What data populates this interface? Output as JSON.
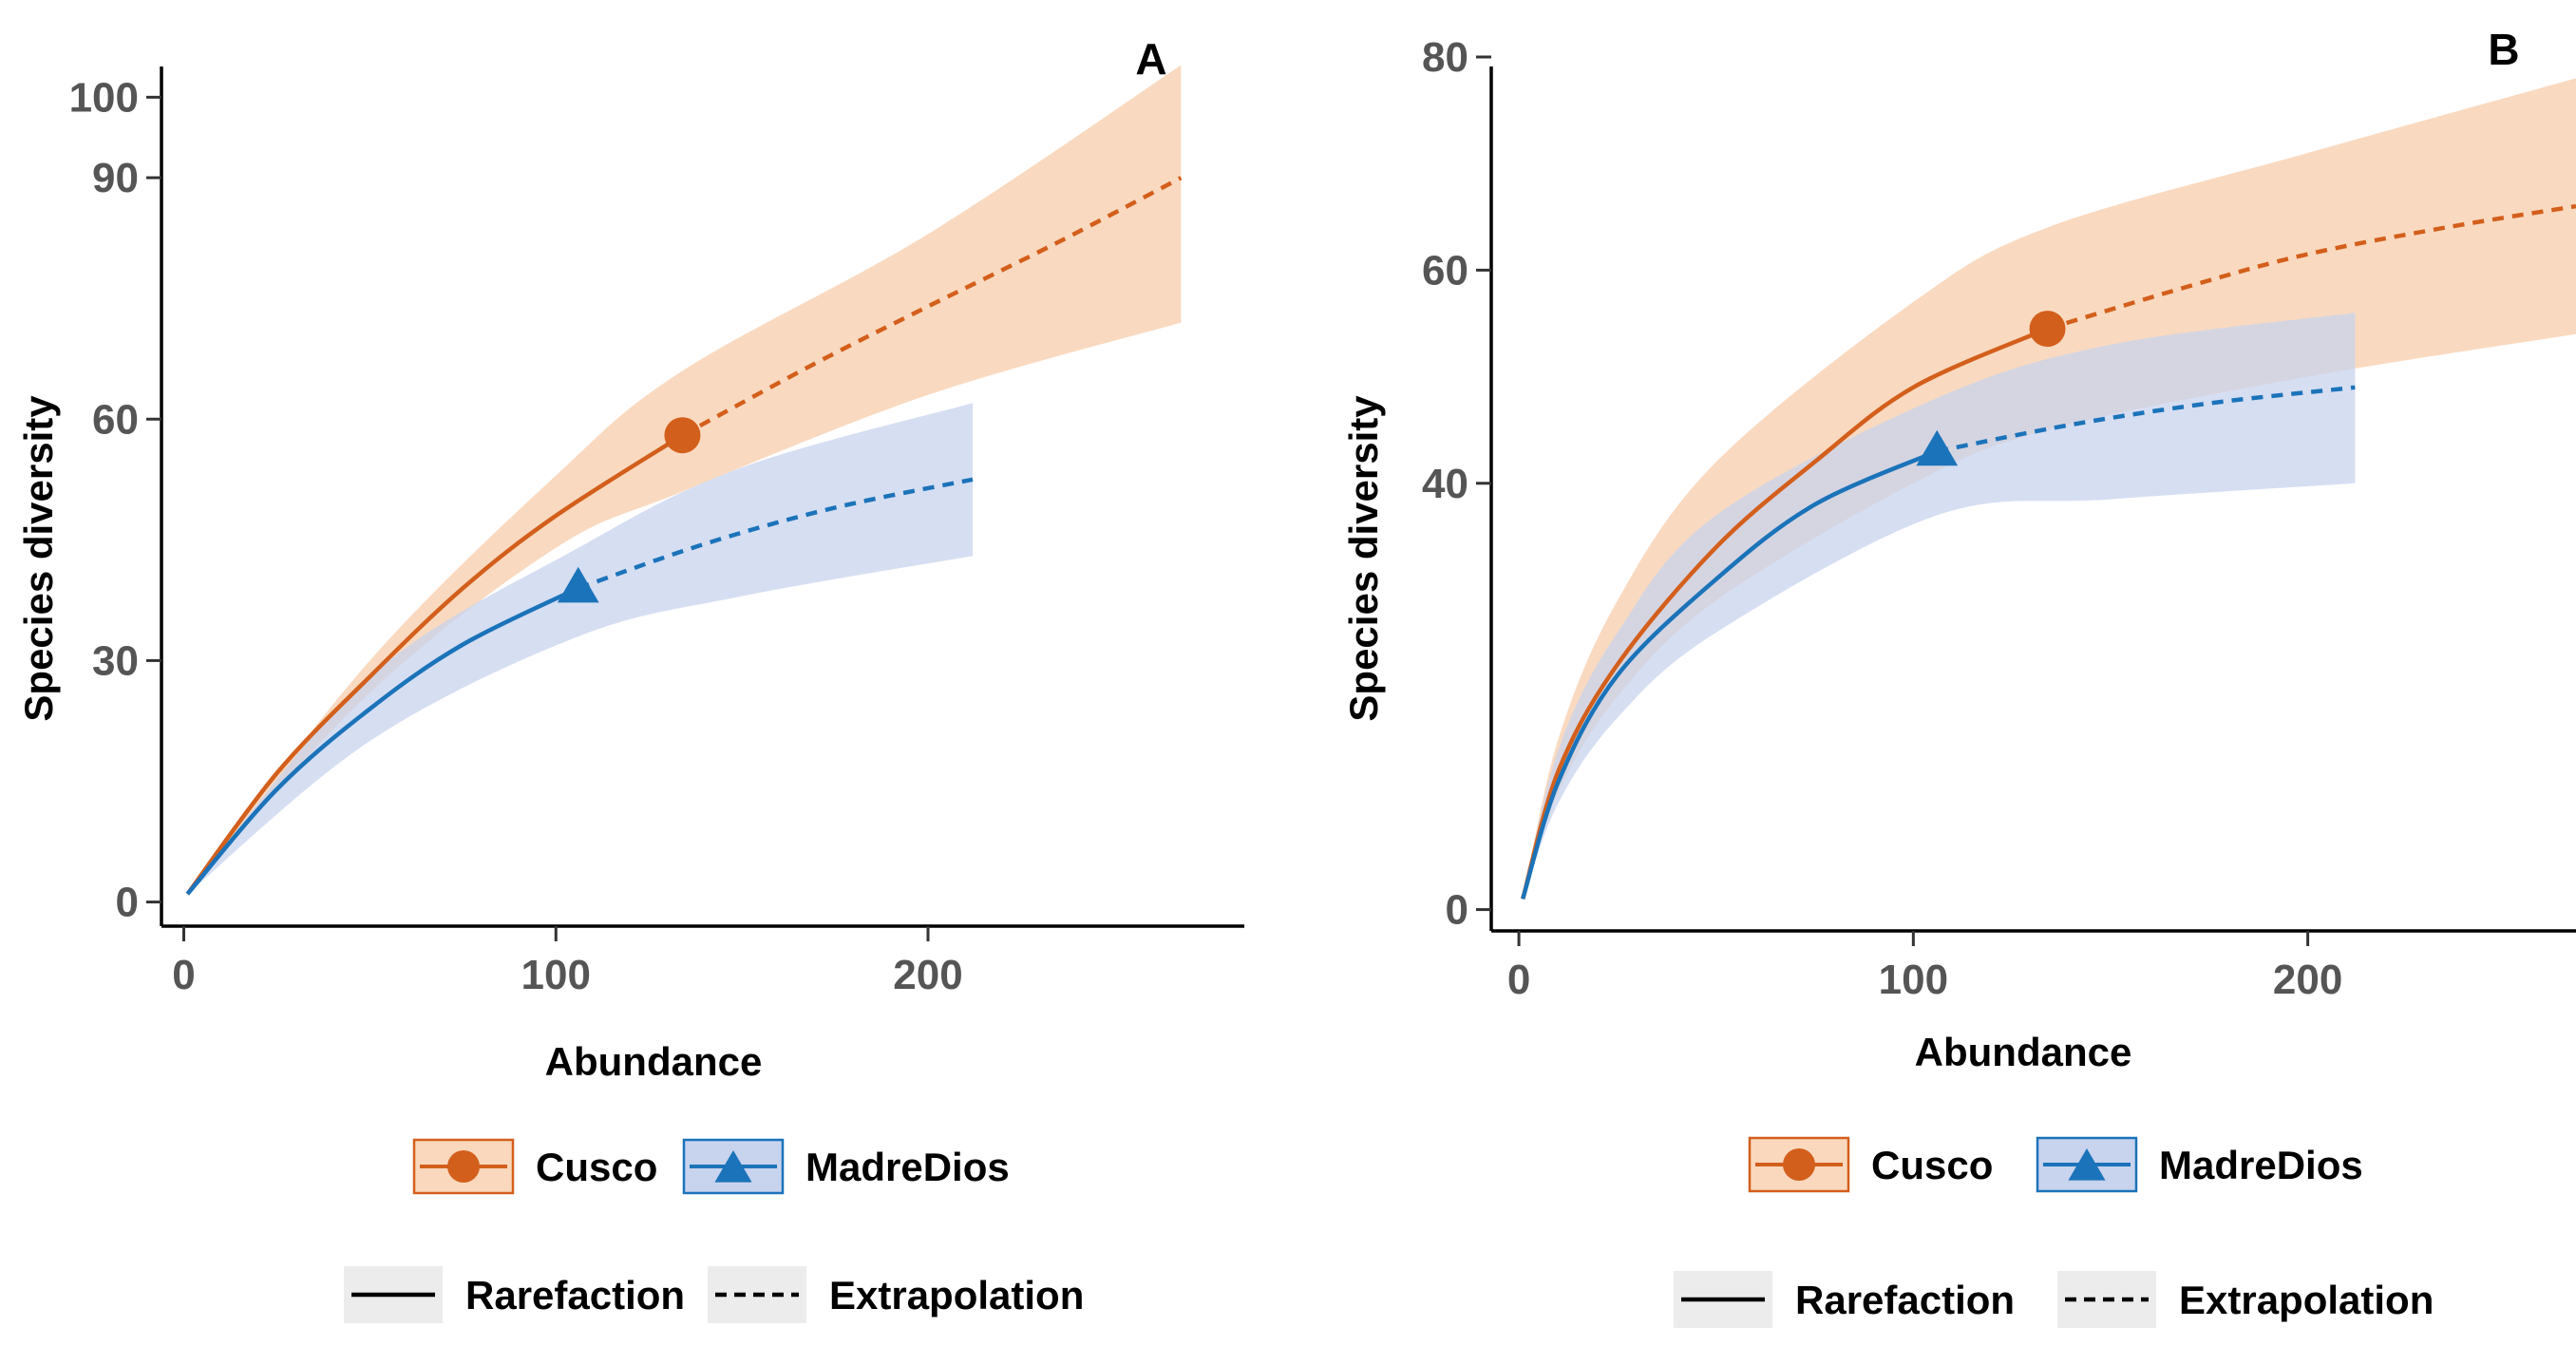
{
  "colors": {
    "cusco_line": "#d35f1c",
    "cusco_band": "#f9d8bd",
    "madre_line": "#1b73b9",
    "madre_band": "#c8d3ee",
    "key_box_fill": "#ececec"
  },
  "legend": {
    "groups": [
      {
        "label": "Cusco",
        "marker": "circle"
      },
      {
        "label": "MadreDios",
        "marker": "triangle"
      }
    ],
    "methods": [
      {
        "label": "Rarefaction",
        "style": "solid"
      },
      {
        "label": "Extrapolation",
        "style": "dashed"
      }
    ]
  },
  "chart_data": [
    {
      "type": "line",
      "panel": "A",
      "title": "",
      "xlabel": "Abundance",
      "ylabel": "Species diversity",
      "xlim": [
        -6,
        285
      ],
      "ylim": [
        -3,
        105
      ],
      "xticks": [
        0,
        100,
        200
      ],
      "yticks": [
        0,
        30,
        60,
        90,
        100
      ],
      "grid": false,
      "series": [
        {
          "name": "Cusco",
          "marker": "circle",
          "observed": {
            "x": 134,
            "y": 58
          },
          "rarefaction": {
            "x": [
              1,
              25,
              50,
              75,
              100,
              134
            ],
            "y": [
              1,
              16,
              28,
              39,
              48,
              58
            ]
          },
          "extrapolation": {
            "x": [
              134,
              170,
              200,
              235,
              268
            ],
            "y": [
              58,
              67,
              74,
              82,
              90
            ]
          },
          "ci_upper": [
            [
              1,
              1
            ],
            [
              50,
              30
            ],
            [
              100,
              53
            ],
            [
              134,
              66
            ],
            [
              200,
              83
            ],
            [
              268,
              104
            ]
          ],
          "ci_lower": [
            [
              1,
              1
            ],
            [
              50,
              26
            ],
            [
              100,
              44
            ],
            [
              134,
              51
            ],
            [
              200,
              63
            ],
            [
              268,
              72
            ]
          ]
        },
        {
          "name": "MadreDios",
          "marker": "triangle",
          "observed": {
            "x": 106,
            "y": 39
          },
          "rarefaction": {
            "x": [
              1,
              25,
              50,
              75,
              106
            ],
            "y": [
              1,
              14,
              24,
              32,
              39
            ]
          },
          "extrapolation": {
            "x": [
              106,
              140,
              175,
              212
            ],
            "y": [
              39,
              44.5,
              49,
              52.5
            ]
          },
          "ci_upper": [
            [
              1,
              1
            ],
            [
              50,
              28
            ],
            [
              106,
              44
            ],
            [
              150,
              54
            ],
            [
              212,
              62
            ]
          ],
          "ci_lower": [
            [
              1,
              1
            ],
            [
              50,
              20
            ],
            [
              106,
              33
            ],
            [
              150,
              38
            ],
            [
              212,
              43
            ]
          ]
        }
      ]
    },
    {
      "type": "line",
      "panel": "B",
      "title": "",
      "xlabel": "Abundance",
      "ylabel": "Species diversity",
      "xlim": [
        -7,
        268
      ],
      "ylim": [
        -2,
        80
      ],
      "xticks": [
        0,
        100,
        200
      ],
      "yticks": [
        0,
        40,
        60,
        80
      ],
      "grid": false,
      "series": [
        {
          "name": "Cusco",
          "marker": "circle",
          "observed": {
            "x": 134,
            "y": 54.5
          },
          "rarefaction": {
            "x": [
              1,
              10,
              25,
              50,
              75,
              100,
              134
            ],
            "y": [
              1,
              13,
              23,
              34,
              42,
              49,
              54.5
            ]
          },
          "extrapolation": {
            "x": [
              134,
              170,
              200,
              235,
              268
            ],
            "y": [
              54.5,
              58.5,
              61.5,
              64,
              66
            ]
          },
          "ci_upper": [
            [
              1,
              1
            ],
            [
              10,
              16
            ],
            [
              25,
              29
            ],
            [
              50,
              42
            ],
            [
              100,
              57
            ],
            [
              134,
              64
            ],
            [
              200,
              71
            ],
            [
              268,
              78
            ]
          ],
          "ci_lower": [
            [
              1,
              1
            ],
            [
              10,
              11
            ],
            [
              25,
              20
            ],
            [
              50,
              29
            ],
            [
              100,
              40
            ],
            [
              134,
              45
            ],
            [
              200,
              50
            ],
            [
              268,
              54
            ]
          ]
        },
        {
          "name": "MadreDios",
          "marker": "triangle",
          "observed": {
            "x": 106,
            "y": 43
          },
          "rarefaction": {
            "x": [
              1,
              10,
              25,
              50,
              75,
              106
            ],
            "y": [
              1,
              12,
              22,
              31,
              38,
              43
            ]
          },
          "extrapolation": {
            "x": [
              106,
              140,
              175,
              212
            ],
            "y": [
              43,
              45.5,
              47.5,
              49
            ]
          },
          "ci_upper": [
            [
              1,
              1
            ],
            [
              10,
              15
            ],
            [
              25,
              26
            ],
            [
              50,
              37
            ],
            [
              106,
              48
            ],
            [
              150,
              53
            ],
            [
              212,
              56
            ]
          ],
          "ci_lower": [
            [
              1,
              1
            ],
            [
              10,
              10
            ],
            [
              25,
              18
            ],
            [
              50,
              26
            ],
            [
              106,
              37
            ],
            [
              150,
              38.5
            ],
            [
              212,
              40
            ]
          ]
        }
      ]
    }
  ]
}
